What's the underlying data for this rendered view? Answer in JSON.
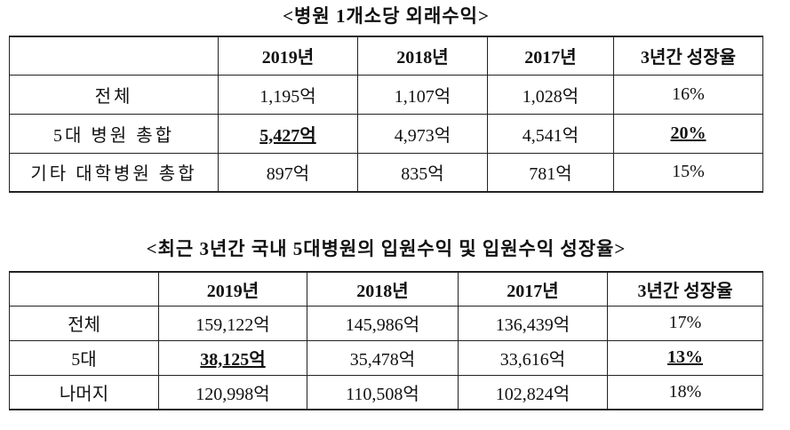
{
  "table1": {
    "title": "<병원 1개소당 외래수익>",
    "header": [
      "2019년",
      "2018년",
      "2017년",
      "3년간 성장율"
    ],
    "rows": [
      [
        "전체",
        "1,195억",
        "1,107억",
        "1,028억",
        "16%"
      ],
      [
        "5대 병원 총합",
        "5,427억",
        "4,973억",
        "4,541억",
        "20%"
      ],
      [
        "기타 대학병원 총합",
        "897억",
        "835억",
        "781억",
        "15%"
      ]
    ]
  },
  "table2": {
    "title": "<최근 3년간 국내 5대병원의 입원수익 및 입원수익 성장율>",
    "header": [
      "2019년",
      "2018년",
      "2017년",
      "3년간 성장율"
    ],
    "rows": [
      [
        "전체",
        "159,122억",
        "145,986억",
        "136,439억",
        "17%"
      ],
      [
        "5대",
        "38,125억",
        "35,478억",
        "33,616억",
        "13%"
      ],
      [
        "나머지",
        "120,998억",
        "110,508억",
        "102,824억",
        "18%"
      ]
    ]
  }
}
